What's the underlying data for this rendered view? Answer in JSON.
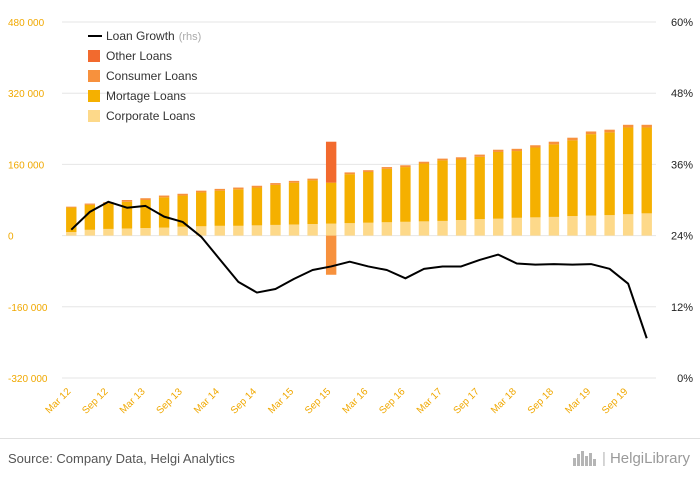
{
  "chart_data": {
    "type": "bar+line",
    "title": "",
    "categories": [
      "Mar 12",
      "Jun 12",
      "Sep 12",
      "Dec 12",
      "Mar 13",
      "Jun 13",
      "Sep 13",
      "Dec 13",
      "Mar 14",
      "Jun 14",
      "Sep 14",
      "Dec 14",
      "Mar 15",
      "Jun 15",
      "Sep 15",
      "Dec 15",
      "Mar 16",
      "Jun 16",
      "Sep 16",
      "Dec 16",
      "Mar 17",
      "Jun 17",
      "Sep 17",
      "Dec 17",
      "Mar 18",
      "Jun 18",
      "Sep 18",
      "Dec 18",
      "Mar 19",
      "Jun 19",
      "Sep 19",
      "Dec 19"
    ],
    "x_tick_labels": [
      "Mar 12",
      "Sep 12",
      "Mar 13",
      "Sep 13",
      "Mar 14",
      "Sep 14",
      "Mar 15",
      "Sep 15",
      "Mar 16",
      "Sep 16",
      "Mar 17",
      "Sep 17",
      "Mar 18",
      "Sep 18",
      "Mar 19",
      "Sep 19"
    ],
    "left_axis": {
      "ylim": [
        -320000,
        480000
      ],
      "ticks": [
        480000,
        320000,
        160000,
        0,
        -160000,
        -320000
      ],
      "tick_labels": [
        "480 000",
        "320 000",
        "160 000",
        "0",
        "-160 000",
        "-320 000"
      ]
    },
    "right_axis": {
      "ylim": [
        0,
        60
      ],
      "ticks": [
        60,
        48,
        36,
        24,
        12,
        0
      ],
      "tick_labels": [
        "60%",
        "48%",
        "36%",
        "24%",
        "12%",
        "0%"
      ]
    },
    "series": [
      {
        "name": "Corporate Loans",
        "axis": "left",
        "type": "stacked-bar",
        "color": "#fdd98a",
        "values": [
          8000,
          13000,
          15000,
          16000,
          17000,
          18000,
          20000,
          21000,
          22000,
          22000,
          23000,
          24000,
          25000,
          26000,
          27000,
          28000,
          29000,
          30000,
          31000,
          32000,
          33000,
          35000,
          37000,
          38000,
          40000,
          41000,
          42000,
          44000,
          45000,
          46000,
          48000,
          50000
        ]
      },
      {
        "name": "Mortage Loans",
        "axis": "left",
        "type": "stacked-bar",
        "color": "#f5b000",
        "values": [
          55000,
          56000,
          57000,
          60000,
          63000,
          68000,
          70000,
          76000,
          79000,
          82000,
          85000,
          90000,
          94000,
          98000,
          92000,
          110000,
          114000,
          120000,
          123000,
          130000,
          136000,
          136000,
          140000,
          150000,
          150000,
          157000,
          163000,
          170000,
          183000,
          186000,
          195000,
          193000
        ]
      },
      {
        "name": "Consumer Loans",
        "axis": "left",
        "type": "stacked-bar",
        "color": "#f7913d",
        "values": [
          2000,
          3000,
          3000,
          4000,
          4000,
          4000,
          4000,
          4000,
          4000,
          4000,
          4000,
          4000,
          4000,
          4000,
          -88000,
          4000,
          4000,
          4000,
          4000,
          4000,
          4000,
          5000,
          5000,
          5000,
          5000,
          5000,
          6000,
          6000,
          6000,
          6000,
          6000,
          6000
        ]
      },
      {
        "name": "Other Loans",
        "axis": "left",
        "type": "stacked-bar",
        "color": "#f26a2e",
        "values": [
          0,
          0,
          0,
          0,
          0,
          0,
          0,
          0,
          0,
          0,
          0,
          0,
          0,
          0,
          92000,
          0,
          0,
          0,
          0,
          0,
          0,
          0,
          0,
          0,
          0,
          0,
          0,
          0,
          0,
          0,
          0,
          0
        ]
      },
      {
        "name": "Loan Growth",
        "axis": "right",
        "type": "line",
        "color": "#000000",
        "unit": "%",
        "values": [
          25.0,
          28.0,
          29.7,
          28.7,
          29.0,
          27.2,
          26.3,
          23.8,
          20.0,
          16.2,
          14.4,
          15.0,
          16.7,
          18.2,
          18.8,
          19.6,
          18.8,
          18.2,
          16.8,
          18.4,
          18.8,
          18.8,
          19.9,
          20.8,
          19.3,
          19.1,
          19.2,
          19.1,
          19.2,
          18.4,
          15.9,
          6.7
        ]
      }
    ]
  },
  "legend": [
    {
      "label": "Loan Growth",
      "note": "(rhs)",
      "kind": "line",
      "color": "#000000"
    },
    {
      "label": "Other Loans",
      "note": "",
      "kind": "box",
      "color": "#f26a2e"
    },
    {
      "label": "Consumer Loans",
      "note": "",
      "kind": "box",
      "color": "#f7913d"
    },
    {
      "label": "Mortage Loans",
      "note": "",
      "kind": "box",
      "color": "#f5b000"
    },
    {
      "label": "Corporate Loans",
      "note": "",
      "kind": "box",
      "color": "#fdd98a"
    }
  ],
  "footer": {
    "source": "Source: Company Data, Helgi Analytics",
    "brand": "HelgiLibrary",
    "brand_sep": "|"
  },
  "colors": {
    "grid": "#e6e6e6",
    "left_tick": "#f0a800",
    "x_tick": "#f0a800",
    "right_tick": "#222222"
  },
  "icons": {
    "brand_logo": "helgi-city-icon"
  }
}
